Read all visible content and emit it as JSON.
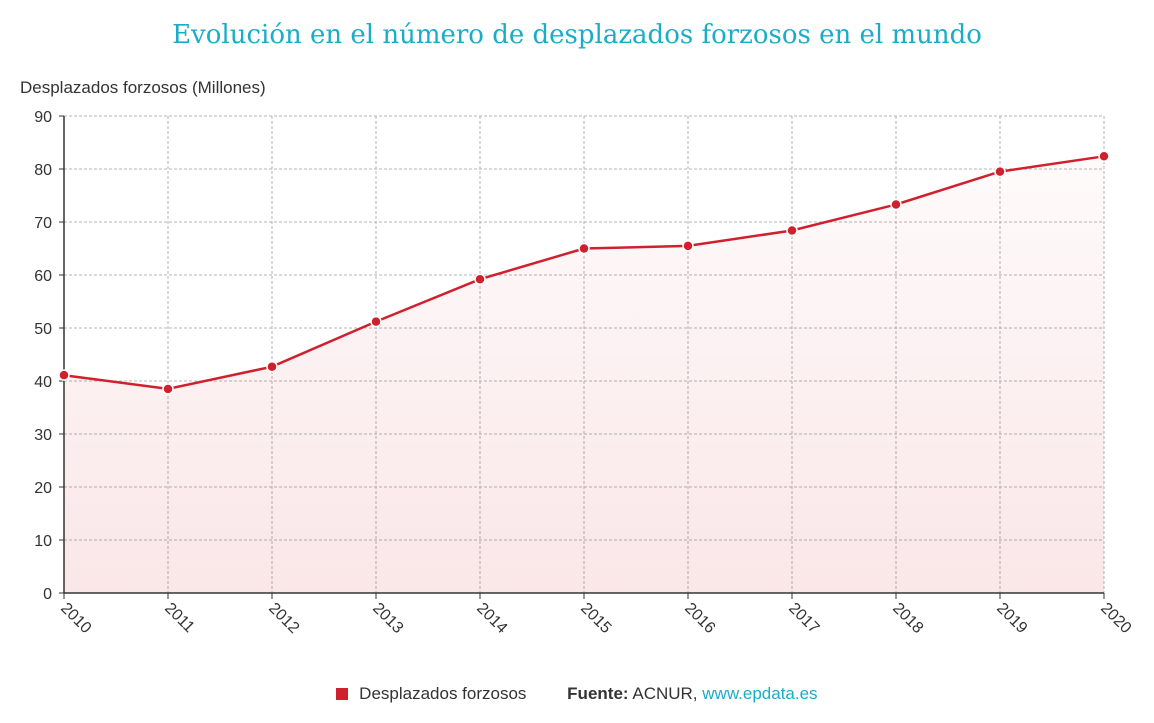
{
  "title": "Evolución en el número de desplazados forzosos en el mundo",
  "legend": {
    "label": "Desplazados forzosos"
  },
  "footer": {
    "source_label": "Fuente:",
    "source_text": "ACNUR,",
    "source_link": "www.epdata.es"
  },
  "colors": {
    "title": "#1bacc7",
    "line": "#d0202e",
    "grid": "#b5b5b5",
    "link": "#1bacc7"
  },
  "chart_data": {
    "type": "area",
    "title": "Evolución en el número de desplazados forzosos en el mundo",
    "ylabel": "Desplazados forzosos (Millones)",
    "xlabel": "",
    "categories": [
      "2010",
      "2011",
      "2012",
      "2013",
      "2014",
      "2015",
      "2016",
      "2017",
      "2018",
      "2019",
      "2020"
    ],
    "series": [
      {
        "name": "Desplazados forzosos",
        "values": [
          41.1,
          38.5,
          42.7,
          51.2,
          59.2,
          65.0,
          65.5,
          68.4,
          73.3,
          79.5,
          82.4
        ]
      }
    ],
    "ylim": [
      0,
      90
    ],
    "yticks": [
      0,
      10,
      20,
      30,
      40,
      50,
      60,
      70,
      80,
      90
    ],
    "grid": true,
    "legend_position": "bottom"
  }
}
